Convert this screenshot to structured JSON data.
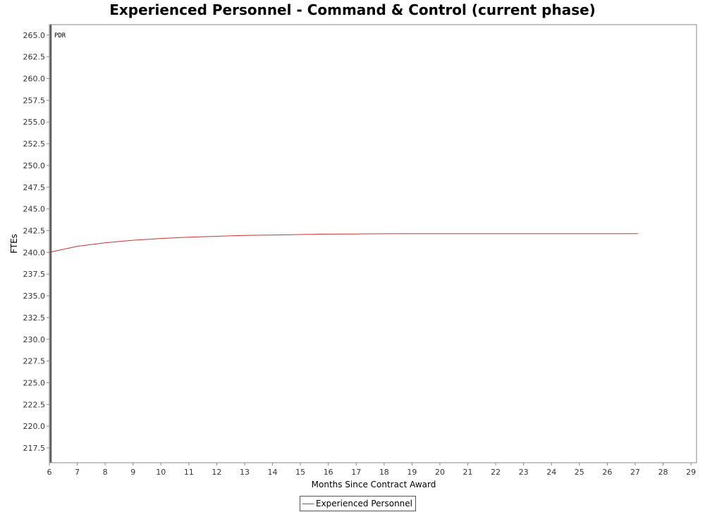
{
  "chart_data": {
    "type": "line",
    "title": "Experienced Personnel - Command & Control (current phase)",
    "xlabel": "Months Since Contract Award",
    "ylabel": "FTEs",
    "xlim": [
      6,
      29.2
    ],
    "ylim": [
      215.8,
      266.2
    ],
    "x_ticks": [
      6,
      7,
      8,
      9,
      10,
      11,
      12,
      13,
      14,
      15,
      16,
      17,
      18,
      19,
      20,
      21,
      22,
      23,
      24,
      25,
      26,
      27,
      28,
      29
    ],
    "y_ticks": [
      217.5,
      220.0,
      222.5,
      225.0,
      227.5,
      230.0,
      232.5,
      235.0,
      237.5,
      240.0,
      242.5,
      245.0,
      247.5,
      250.0,
      252.5,
      255.0,
      257.5,
      260.0,
      262.5,
      265.0
    ],
    "grid": false,
    "legend_position": "bottom-center",
    "markers": [
      {
        "label": "PDR",
        "x": 6.05
      }
    ],
    "series": [
      {
        "name": "Experienced Personnel",
        "color": "#cc3333",
        "x": [
          6,
          7,
          8,
          9,
          10,
          11,
          12,
          13,
          14,
          15,
          16,
          17,
          18,
          19,
          20,
          21,
          22,
          23,
          24,
          25,
          26,
          27,
          27.1
        ],
        "y": [
          240.0,
          240.7,
          241.1,
          241.4,
          241.6,
          241.75,
          241.85,
          241.95,
          242.0,
          242.05,
          242.1,
          242.12,
          242.14,
          242.15,
          242.15,
          242.15,
          242.15,
          242.15,
          242.15,
          242.15,
          242.15,
          242.15,
          242.15
        ]
      }
    ]
  }
}
